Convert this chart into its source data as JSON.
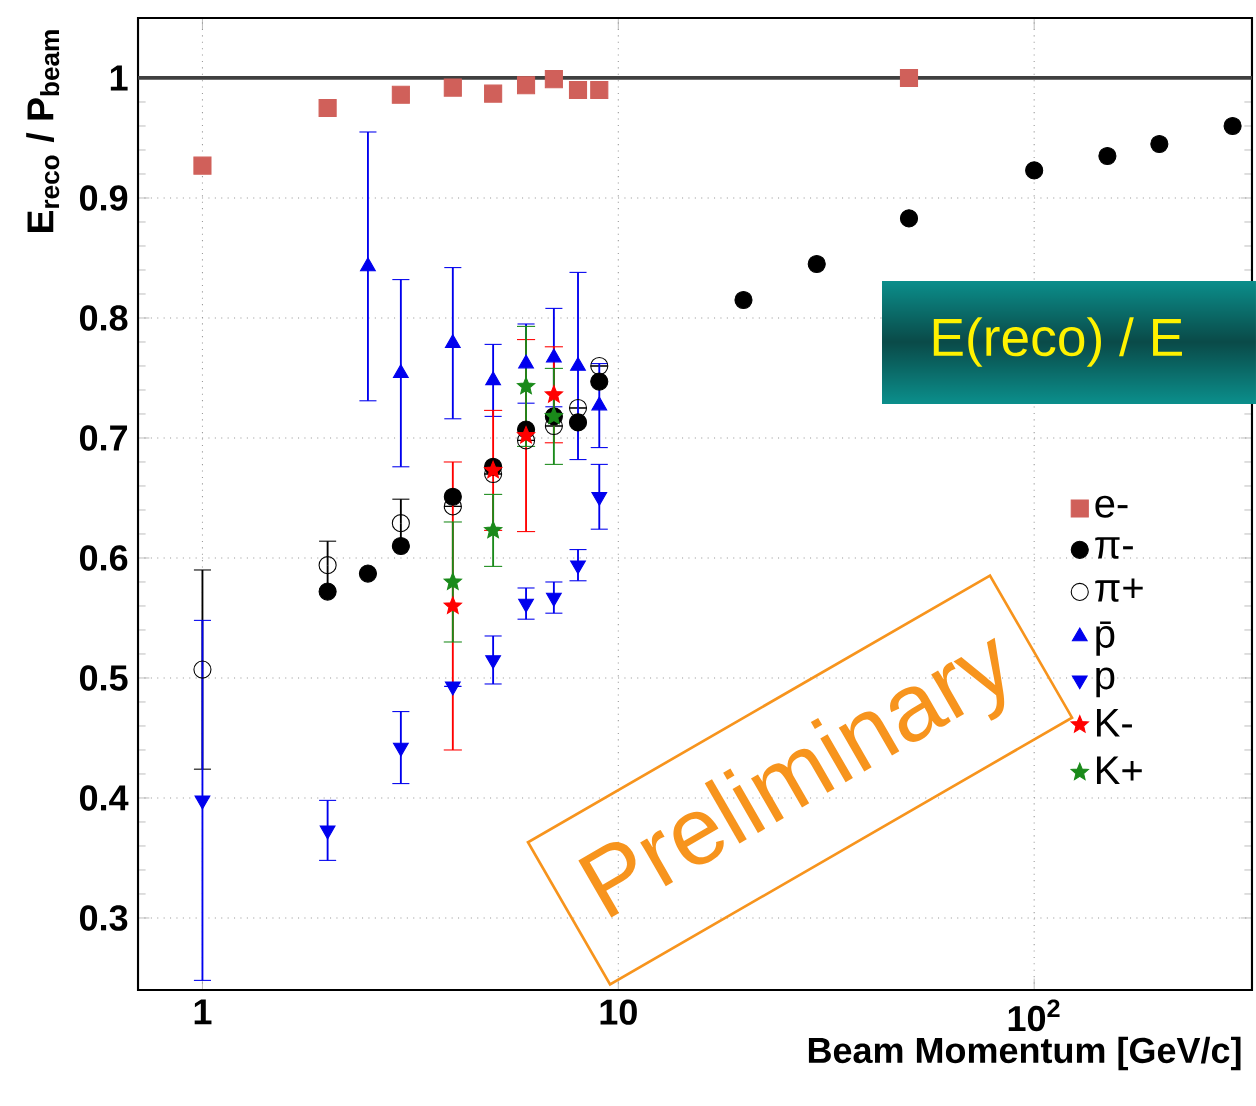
{
  "chart_data": {
    "type": "scatter",
    "xlabel": "Beam Momentum [GeV/c]",
    "ylabel": "E$_{reco}$ / P$_{beam}$",
    "log": "x",
    "grid": true,
    "legend": "right",
    "xlim": [
      0.7,
      334
    ],
    "ylim": [
      0.24,
      1.05
    ],
    "xticks": [
      1,
      10,
      {
        "value": 100,
        "label": "10$^{2}$"
      }
    ],
    "yticks": [
      0.3,
      0.4,
      0.5,
      0.6,
      0.7,
      0.8,
      0.9,
      1
    ],
    "ref_lines": [
      {
        "axis": "y",
        "value": 1,
        "color": "#404040"
      }
    ],
    "annotations": [
      "E(reco) / E",
      "Preliminary"
    ],
    "series": [
      {
        "name": "e-",
        "color": "#d0605a",
        "marker": "square",
        "x": [
          1,
          2,
          3,
          4,
          5,
          6,
          7,
          8,
          9,
          50
        ],
        "values": [
          0.927,
          0.975,
          0.986,
          0.992,
          0.987,
          0.994,
          0.999,
          0.99,
          0.99,
          1.0
        ]
      },
      {
        "name": "π-",
        "color": "#000000",
        "marker": "circle",
        "x": [
          2,
          2.5,
          3,
          4,
          5,
          6,
          7,
          8,
          9,
          20,
          30,
          50,
          100,
          150,
          200,
          300
        ],
        "values": [
          0.572,
          0.587,
          0.61,
          0.651,
          0.676,
          0.707,
          0.718,
          0.713,
          0.747,
          0.815,
          0.845,
          0.883,
          0.923,
          0.935,
          0.945,
          0.96
        ]
      },
      {
        "name": "π+",
        "color": "#000000",
        "marker": "circle-open",
        "x": [
          1,
          2,
          3,
          4,
          5,
          6,
          7,
          8,
          9
        ],
        "values": [
          0.507,
          0.594,
          0.629,
          0.643,
          0.67,
          0.698,
          0.71,
          0.725,
          0.76
        ],
        "errors": [
          0.083,
          0.02,
          0.02,
          null,
          null,
          null,
          null,
          null,
          null
        ]
      },
      {
        "name": "p̄",
        "color": "#0000ee",
        "marker": "triangle",
        "x": [
          2.5,
          3,
          4,
          5,
          6,
          7,
          8,
          9
        ],
        "values": [
          0.843,
          0.754,
          0.779,
          0.748,
          0.762,
          0.767,
          0.76,
          0.727
        ],
        "errors": [
          0.112,
          0.078,
          0.063,
          0.03,
          0.033,
          0.041,
          0.078,
          0.035
        ]
      },
      {
        "name": "p",
        "color": "#0000ee",
        "marker": "triangle-down",
        "x": [
          1,
          2,
          3,
          4,
          5,
          6,
          7,
          8,
          9
        ],
        "values": [
          0.398,
          0.373,
          0.442,
          0.493,
          0.515,
          0.562,
          0.567,
          0.594,
          0.651
        ],
        "errors": [
          0.15,
          0.025,
          0.03,
          null,
          0.02,
          0.013,
          0.013,
          0.013,
          0.027
        ]
      },
      {
        "name": "K-",
        "color": "#ff0000",
        "marker": "star",
        "x": [
          4,
          5,
          6,
          7
        ],
        "values": [
          0.56,
          0.673,
          0.702,
          0.736
        ],
        "errors": [
          0.12,
          0.05,
          0.08,
          0.04
        ]
      },
      {
        "name": "K+",
        "color": "#1a8a1a",
        "marker": "star",
        "x": [
          4,
          5,
          6,
          7
        ],
        "values": [
          0.58,
          0.623,
          0.743,
          0.718
        ],
        "errors": [
          0.05,
          0.03,
          0.05,
          0.04
        ]
      }
    ]
  }
}
